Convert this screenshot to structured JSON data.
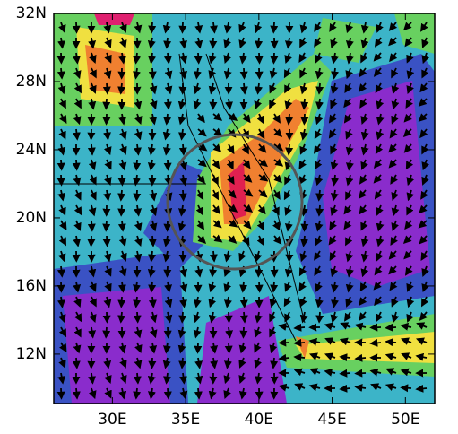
{
  "chart_data": {
    "type": "map",
    "xlim": [
      26,
      52
    ],
    "ylim": [
      9.1,
      32
    ],
    "xticks": [
      {
        "value": 30,
        "label": "30E"
      },
      {
        "value": 35,
        "label": "35E"
      },
      {
        "value": 40,
        "label": "40E"
      },
      {
        "value": 45,
        "label": "45E"
      },
      {
        "value": 50,
        "label": "50E"
      }
    ],
    "yticks": [
      {
        "value": 32,
        "label": "32N"
      },
      {
        "value": 28,
        "label": "28N"
      },
      {
        "value": 24,
        "label": "24N"
      },
      {
        "value": 20,
        "label": "20N"
      },
      {
        "value": 16,
        "label": "16N"
      },
      {
        "value": 12,
        "label": "12N"
      }
    ]
  }
}
